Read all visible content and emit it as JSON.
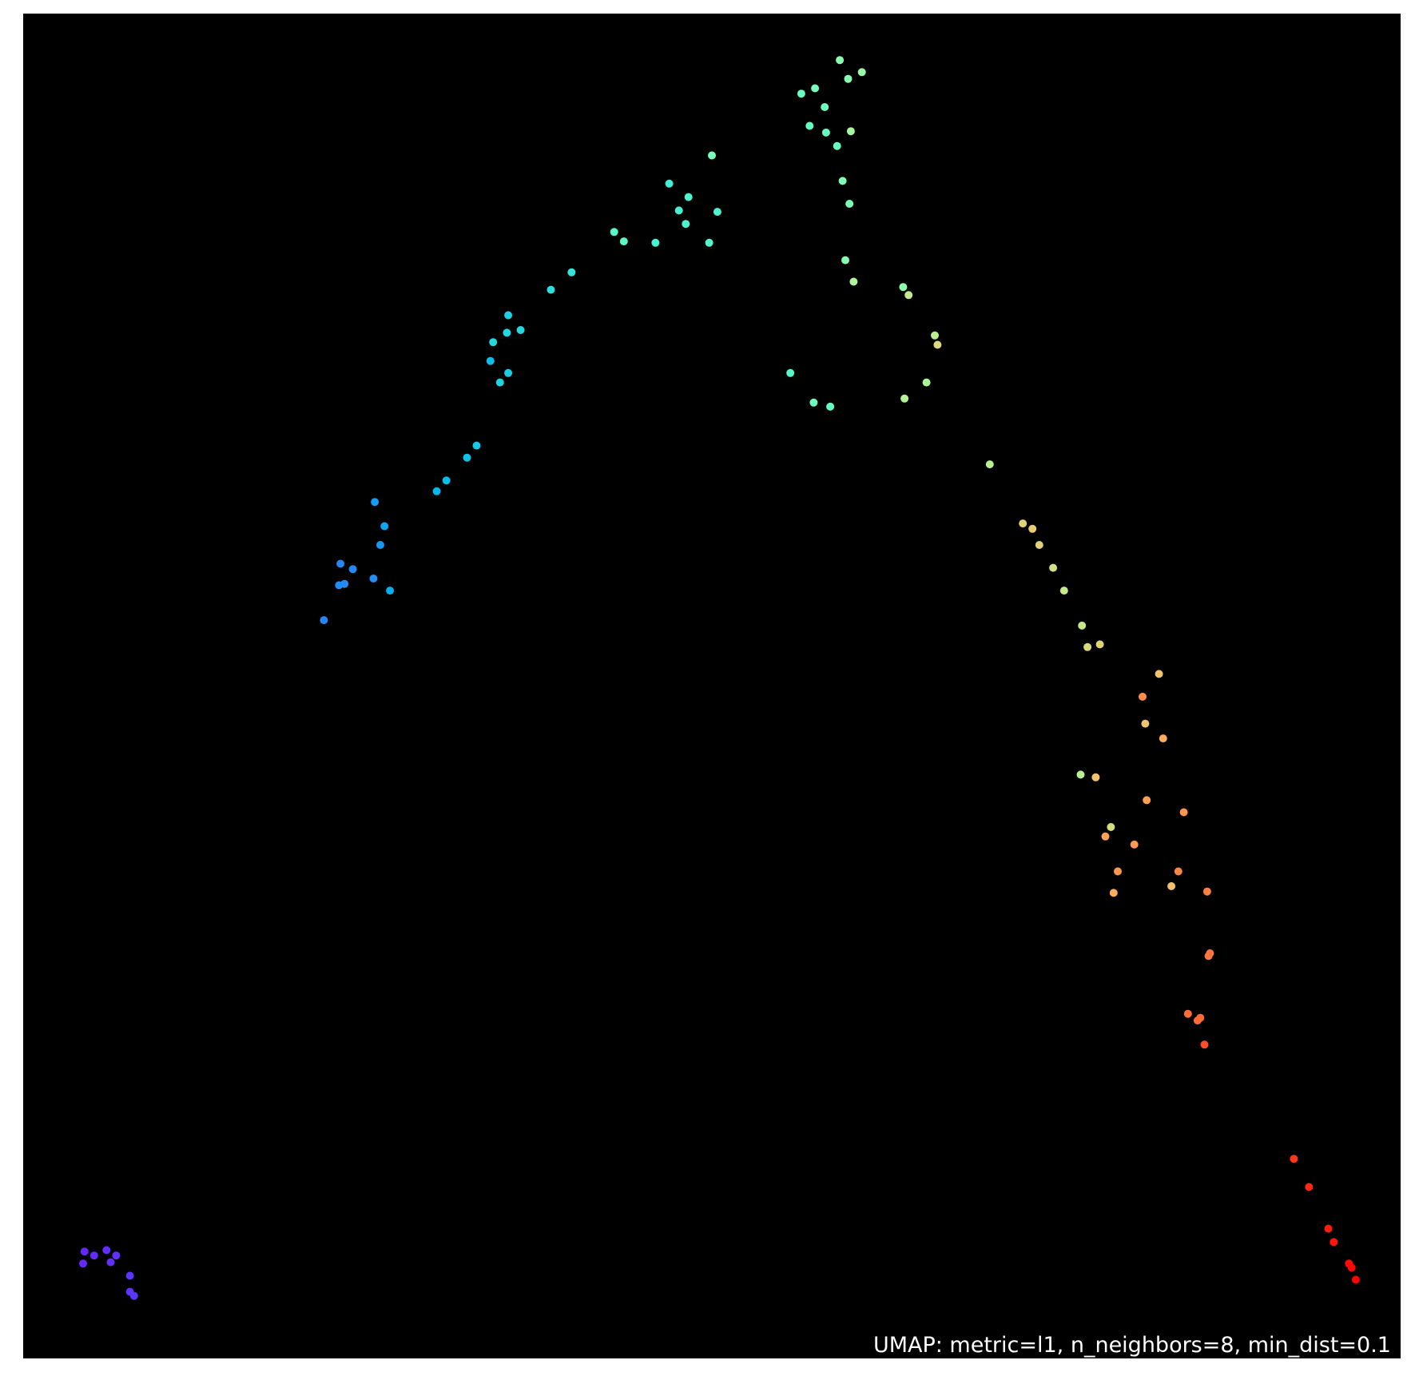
{
  "chart_data": {
    "type": "scatter",
    "title": "UMAP: metric=l1, n_neighbors=8, min_dist=0.1",
    "xlim": [
      0,
      1
    ],
    "ylim": [
      0,
      1
    ],
    "background": "#000000",
    "frame_color": "#000000",
    "colormap": "rainbow",
    "x": [
      0.043,
      0.044,
      0.051,
      0.06,
      0.063,
      0.067,
      0.077,
      0.077,
      0.08,
      0.218,
      0.229,
      0.23,
      0.233,
      0.239,
      0.254,
      0.255,
      0.262,
      0.259,
      0.266,
      0.3,
      0.307,
      0.322,
      0.329,
      0.339,
      0.346,
      0.352,
      0.352,
      0.341,
      0.351,
      0.361,
      0.383,
      0.398,
      0.429,
      0.436,
      0.459,
      0.469,
      0.476,
      0.481,
      0.483,
      0.498,
      0.5,
      0.504,
      0.557,
      0.565,
      0.571,
      0.574,
      0.575,
      0.582,
      0.583,
      0.586,
      0.591,
      0.593,
      0.595,
      0.597,
      0.599,
      0.6,
      0.601,
      0.603,
      0.609,
      0.639,
      0.64,
      0.643,
      0.656,
      0.662,
      0.664,
      0.702,
      0.726,
      0.733,
      0.738,
      0.748,
      0.756,
      0.769,
      0.773,
      0.782,
      0.768,
      0.779,
      0.786,
      0.79,
      0.792,
      0.795,
      0.807,
      0.813,
      0.815,
      0.816,
      0.825,
      0.828,
      0.834,
      0.839,
      0.843,
      0.86,
      0.861,
      0.862,
      0.846,
      0.853,
      0.855,
      0.858,
      0.923,
      0.934,
      0.948,
      0.952,
      0.963,
      0.965,
      0.968
    ],
    "y": [
      0.07,
      0.079,
      0.076,
      0.08,
      0.071,
      0.076,
      0.061,
      0.049,
      0.046,
      0.549,
      0.575,
      0.591,
      0.576,
      0.587,
      0.58,
      0.637,
      0.619,
      0.605,
      0.571,
      0.645,
      0.653,
      0.67,
      0.679,
      0.742,
      0.726,
      0.733,
      0.776,
      0.756,
      0.763,
      0.765,
      0.795,
      0.808,
      0.838,
      0.831,
      0.83,
      0.874,
      0.854,
      0.844,
      0.864,
      0.83,
      0.895,
      0.853,
      0.733,
      0.941,
      0.917,
      0.711,
      0.945,
      0.931,
      0.912,
      0.708,
      0.902,
      0.966,
      0.876,
      0.817,
      0.952,
      0.859,
      0.913,
      0.801,
      0.957,
      0.797,
      0.714,
      0.791,
      0.726,
      0.761,
      0.754,
      0.665,
      0.621,
      0.617,
      0.605,
      0.588,
      0.571,
      0.545,
      0.529,
      0.531,
      0.434,
      0.432,
      0.388,
      0.395,
      0.346,
      0.362,
      0.382,
      0.492,
      0.472,
      0.415,
      0.509,
      0.461,
      0.351,
      0.362,
      0.406,
      0.347,
      0.299,
      0.301,
      0.256,
      0.251,
      0.253,
      0.233,
      0.148,
      0.127,
      0.096,
      0.086,
      0.07,
      0.067,
      0.058
    ],
    "color_values": [
      0.05,
      0.052,
      0.055,
      0.058,
      0.06,
      0.062,
      0.064,
      0.066,
      0.068,
      0.175,
      0.185,
      0.178,
      0.18,
      0.182,
      0.19,
      0.208,
      0.225,
      0.205,
      0.24,
      0.255,
      0.265,
      0.278,
      0.29,
      0.272,
      0.315,
      0.3,
      0.305,
      0.322,
      0.318,
      0.32,
      0.338,
      0.352,
      0.42,
      0.43,
      0.393,
      0.382,
      0.392,
      0.398,
      0.404,
      0.412,
      0.485,
      0.402,
      0.418,
      0.458,
      0.448,
      0.462,
      0.478,
      0.468,
      0.452,
      0.448,
      0.45,
      0.52,
      0.5,
      0.508,
      0.51,
      0.49,
      0.575,
      0.592,
      0.548,
      0.53,
      0.602,
      0.628,
      0.59,
      0.612,
      0.675,
      0.612,
      0.69,
      0.705,
      0.694,
      0.655,
      0.632,
      0.638,
      0.672,
      0.69,
      0.612,
      0.722,
      0.782,
      0.665,
      0.762,
      0.8,
      0.795,
      0.812,
      0.718,
      0.785,
      0.72,
      0.765,
      0.725,
      0.825,
      0.802,
      0.835,
      0.842,
      0.85,
      0.86,
      0.865,
      0.862,
      0.905,
      0.93,
      0.95,
      0.965,
      0.972,
      0.985,
      0.99,
      0.998
    ]
  },
  "caption": "UMAP: metric=l1, n_neighbors=8, min_dist=0.1"
}
